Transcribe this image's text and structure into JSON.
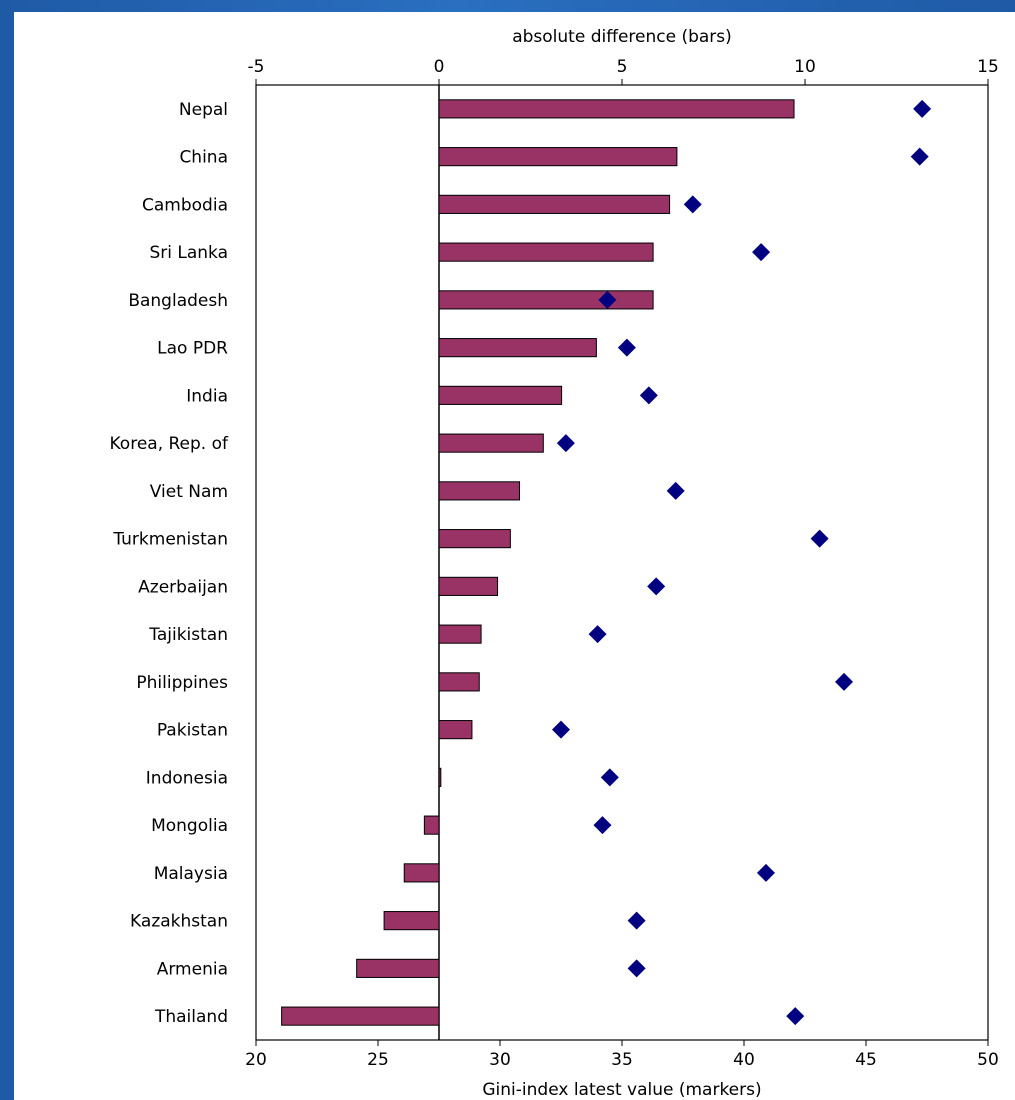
{
  "colors": {
    "bar_fill": "#993366",
    "bar_stroke": "#000000",
    "marker_fill": "#000080",
    "panel_bg": "#ffffff",
    "page_bg": "#2a6fc0"
  },
  "chart_data": {
    "type": "bar",
    "orientation": "horizontal",
    "title": "",
    "grid": false,
    "legend": "none",
    "top_axis": {
      "label": "absolute difference (bars)",
      "range": [
        -5,
        15
      ],
      "ticks": [
        "-5",
        "0",
        "5",
        "10",
        "15"
      ]
    },
    "bottom_axis": {
      "label": "Gini-index latest value  (markers)",
      "range": [
        20,
        50
      ],
      "ticks": [
        "20",
        "25",
        "30",
        "35",
        "40",
        "45",
        "50"
      ]
    },
    "categories": [
      "Nepal",
      "China",
      "Cambodia",
      "Sri Lanka",
      "Bangladesh",
      "Lao PDR",
      "India",
      "Korea, Rep. of",
      "Viet Nam",
      "Turkmenistan",
      "Azerbaijan",
      "Tajikistan",
      "Philippines",
      "Pakistan",
      "Indonesia",
      "Mongolia",
      "Malaysia",
      "Kazakhstan",
      "Armenia",
      "Thailand"
    ],
    "series": [
      {
        "type": "bar",
        "axis": "top",
        "values": [
          9.7,
          6.5,
          6.3,
          5.85,
          5.85,
          4.3,
          3.35,
          2.85,
          2.2,
          1.95,
          1.6,
          1.15,
          1.1,
          0.9,
          0.05,
          -0.4,
          -0.95,
          -1.5,
          -2.25,
          -4.3
        ]
      },
      {
        "type": "scatter",
        "axis": "bottom",
        "marker": "diamond",
        "values": [
          47.3,
          47.2,
          37.9,
          40.7,
          34.4,
          35.2,
          36.1,
          32.7,
          37.2,
          43.1,
          36.4,
          34.0,
          44.1,
          32.5,
          34.5,
          34.2,
          40.9,
          35.6,
          35.6,
          42.1
        ]
      }
    ]
  }
}
